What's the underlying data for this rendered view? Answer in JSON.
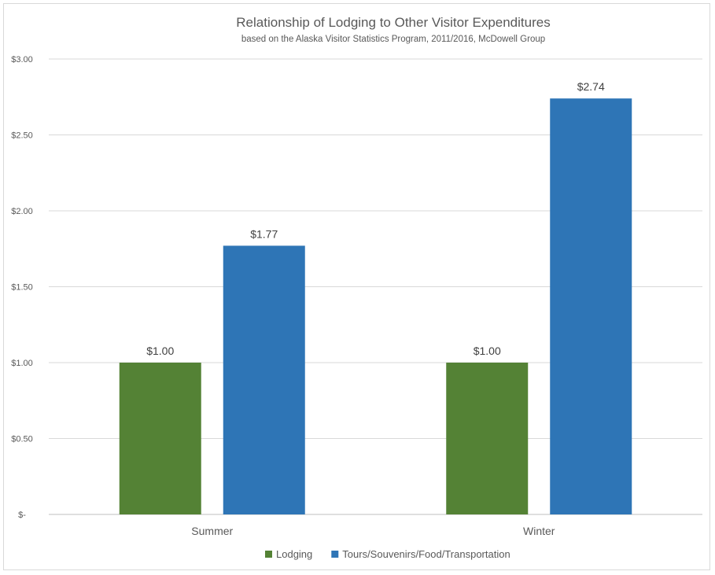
{
  "chart_data": {
    "type": "bar",
    "title": "Relationship of Lodging to Other Visitor Expenditures",
    "subtitle": "based on the Alaska Visitor Statistics Program, 2011/2016, McDowell Group",
    "categories": [
      "Summer",
      "Winter"
    ],
    "series": [
      {
        "name": "Lodging",
        "values": [
          1.0,
          1.0
        ],
        "labels": [
          "$1.00",
          "$1.00"
        ],
        "color": "#548235"
      },
      {
        "name": "Tours/Souvenirs/Food/Transportation",
        "values": [
          1.77,
          2.74
        ],
        "labels": [
          "$1.77",
          "$2.74"
        ],
        "color": "#2e75b6"
      }
    ],
    "ylim": [
      0,
      3
    ],
    "yticks": [
      0,
      0.5,
      1,
      1.5,
      2,
      2.5,
      3
    ],
    "ytick_labels": [
      "$-",
      "$0.50",
      "$1.00",
      "$1.50",
      "$2.00",
      "$2.50",
      "$3.00"
    ],
    "xlabel": "",
    "ylabel": "",
    "grid": true,
    "legend_position": "bottom"
  }
}
